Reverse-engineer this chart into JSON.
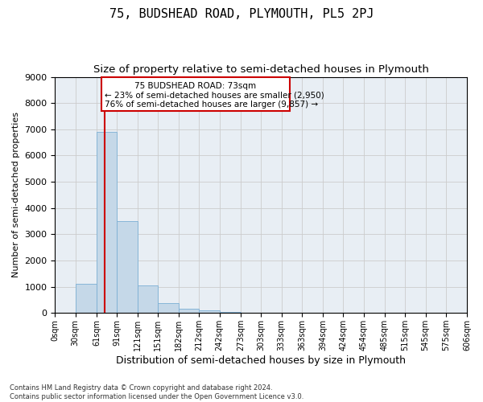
{
  "title_line1": "75, BUDSHEAD ROAD, PLYMOUTH, PL5 2PJ",
  "title_line2": "Size of property relative to semi-detached houses in Plymouth",
  "xlabel": "Distribution of semi-detached houses by size in Plymouth",
  "ylabel": "Number of semi-detached properties",
  "footnote": "Contains HM Land Registry data © Crown copyright and database right 2024.\nContains public sector information licensed under the Open Government Licence v3.0.",
  "property_size": 73,
  "annotation_line1": "75 BUDSHEAD ROAD: 73sqm",
  "annotation_line2": "← 23% of semi-detached houses are smaller (2,950)",
  "annotation_line3": "76% of semi-detached houses are larger (9,857) →",
  "bar_edges": [
    0,
    30,
    61,
    91,
    121,
    151,
    182,
    212,
    242,
    273,
    303,
    333,
    363,
    394,
    424,
    454,
    485,
    515,
    545,
    575,
    606
  ],
  "bar_heights": [
    0,
    1100,
    6900,
    3500,
    1050,
    380,
    150,
    100,
    50,
    0,
    0,
    0,
    0,
    0,
    0,
    0,
    0,
    0,
    0,
    0
  ],
  "bar_color": "#c5d8e8",
  "bar_edge_color": "#7bafd4",
  "ylim": [
    0,
    9000
  ],
  "yticks": [
    0,
    1000,
    2000,
    3000,
    4000,
    5000,
    6000,
    7000,
    8000,
    9000
  ],
  "grid_color": "#cccccc",
  "bg_color": "#e8eef4",
  "annotation_box_color": "#cc0000",
  "vline_color": "#cc0000",
  "title1_fontsize": 11,
  "title2_fontsize": 9.5,
  "tick_label_fontsize": 7,
  "ylabel_fontsize": 8,
  "xlabel_fontsize": 9,
  "annotation_fontsize": 7.5,
  "footnote_fontsize": 6
}
